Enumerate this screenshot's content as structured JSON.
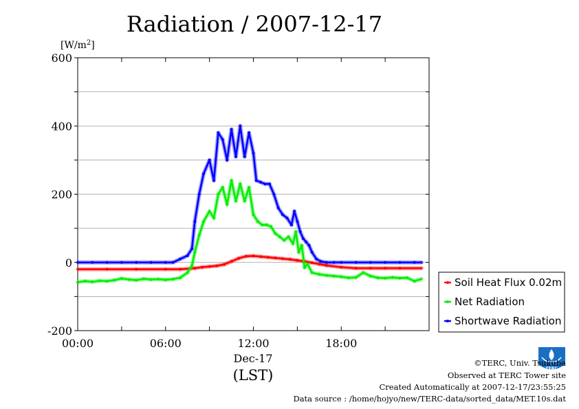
{
  "chart_data": {
    "type": "line",
    "title": "Radiation / 2007-12-17",
    "ylabel_unit": "[W/m",
    "ylabel_unit_sup": "2",
    "ylabel_unit_close": "]",
    "ylim": [
      -200,
      600
    ],
    "xlim": [
      0,
      24
    ],
    "yticks": [
      -200,
      0,
      200,
      400,
      600
    ],
    "ytick_labels": [
      "-200",
      "0",
      "200",
      "400",
      "600"
    ],
    "xticks": [
      0,
      6,
      12,
      18
    ],
    "xtick_labels": [
      "00:00",
      "06:00",
      "12:00",
      "18:00"
    ],
    "x_date_label": "Dec-17",
    "x_axis_label": "(LST)",
    "grid": "horizontal",
    "legend_position": "right",
    "series": [
      {
        "name": "Soil Heat Flux 0.02m",
        "color": "#ff0000",
        "x": [
          0,
          2,
          4,
          6,
          7,
          8,
          8.5,
          9,
          9.5,
          10,
          10.5,
          11,
          11.5,
          12,
          12.5,
          13,
          13.5,
          14,
          14.5,
          15,
          15.5,
          16,
          16.5,
          17,
          18,
          19,
          20,
          21,
          22,
          23.5
        ],
        "values": [
          -20,
          -20,
          -20,
          -20,
          -20,
          -17,
          -14,
          -12,
          -10,
          -6,
          3,
          12,
          18,
          19,
          17,
          15,
          13,
          11,
          9,
          6,
          3,
          -1,
          -5,
          -9,
          -14,
          -17,
          -17,
          -17,
          -17,
          -17
        ]
      },
      {
        "name": "Net Radiation",
        "color": "#00ee00",
        "x": [
          0,
          0.5,
          1,
          1.5,
          2,
          2.5,
          3,
          3.5,
          4,
          4.5,
          5,
          5.5,
          6,
          6.5,
          7,
          7.5,
          7.8,
          8,
          8.3,
          8.6,
          9,
          9.3,
          9.6,
          9.9,
          10.2,
          10.5,
          10.8,
          11.1,
          11.4,
          11.7,
          12,
          12.3,
          12.6,
          12.9,
          13.2,
          13.5,
          13.8,
          14.1,
          14.4,
          14.7,
          14.9,
          15.1,
          15.3,
          15.5,
          15.7,
          16,
          16.5,
          17,
          17.5,
          18,
          18.5,
          19,
          19.5,
          20,
          20.5,
          21,
          21.5,
          22,
          22.5,
          23,
          23.5
        ],
        "values": [
          -58,
          -55,
          -57,
          -54,
          -55,
          -52,
          -47,
          -50,
          -52,
          -48,
          -50,
          -49,
          -51,
          -49,
          -45,
          -30,
          -10,
          30,
          80,
          120,
          150,
          130,
          200,
          220,
          170,
          240,
          180,
          230,
          180,
          220,
          140,
          120,
          110,
          110,
          105,
          85,
          75,
          65,
          75,
          55,
          90,
          30,
          50,
          -15,
          -5,
          -30,
          -35,
          -38,
          -40,
          -42,
          -45,
          -44,
          -30,
          -40,
          -45,
          -46,
          -44,
          -46,
          -45,
          -55,
          -48
        ]
      },
      {
        "name": "Shortwave Radiation",
        "color": "#0000ff",
        "x": [
          0,
          1,
          2,
          3,
          4,
          5,
          6,
          6.5,
          7,
          7.5,
          7.8,
          8,
          8.3,
          8.6,
          9,
          9.3,
          9.6,
          9.9,
          10.2,
          10.5,
          10.8,
          11.1,
          11.4,
          11.7,
          12,
          12.2,
          12.5,
          12.8,
          13.1,
          13.4,
          13.7,
          14,
          14.3,
          14.6,
          14.8,
          15,
          15.2,
          15.4,
          15.6,
          15.8,
          16,
          16.3,
          16.6,
          17,
          17.5,
          18,
          19,
          20,
          21,
          22,
          23,
          23.5
        ],
        "values": [
          0,
          0,
          0,
          0,
          0,
          0,
          0,
          0,
          10,
          20,
          40,
          120,
          200,
          260,
          300,
          240,
          380,
          360,
          300,
          390,
          310,
          400,
          310,
          380,
          320,
          240,
          235,
          230,
          230,
          200,
          160,
          140,
          130,
          110,
          150,
          120,
          90,
          70,
          60,
          50,
          30,
          10,
          3,
          0,
          0,
          0,
          0,
          0,
          0,
          0,
          0,
          0
        ]
      }
    ]
  },
  "credits": {
    "copyright": "©TERC, Univ. Tsukuba",
    "observed": "Observed at TERC Tower site",
    "created": "Created Automatically at 2007-12-17/23:55:25",
    "source": "Data source : /home/hojyo/new/TERC-data/sorted_data/MET.10s.dat",
    "logo_text": "TERC"
  }
}
